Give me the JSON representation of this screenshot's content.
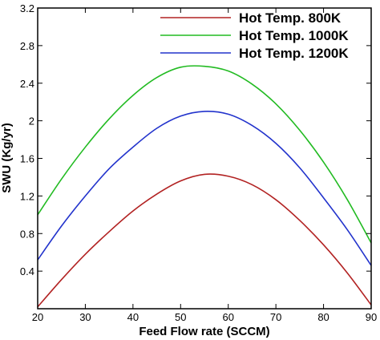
{
  "chart_data": {
    "type": "line",
    "xlabel": "Feed Flow rate (SCCM)",
    "ylabel": "SWU (Kg/yr)",
    "xlim": [
      20,
      90
    ],
    "ylim": [
      0,
      3.2
    ],
    "xticks": [
      20,
      30,
      40,
      50,
      60,
      70,
      80,
      90
    ],
    "yticks": [
      0.4,
      0.8,
      1.2,
      1.6,
      2,
      2.4,
      2.8,
      3.2
    ],
    "legend_position": "top-right",
    "grid": false,
    "x": [
      20,
      25,
      30,
      35,
      40,
      45,
      50,
      55,
      60,
      65,
      70,
      75,
      80,
      85,
      90
    ],
    "series": [
      {
        "name": "Hot Temp. 800K",
        "color": "#b22222",
        "values": [
          0.02,
          0.31,
          0.58,
          0.82,
          1.04,
          1.22,
          1.36,
          1.43,
          1.41,
          1.32,
          1.16,
          0.94,
          0.68,
          0.38,
          0.04
        ]
      },
      {
        "name": "Hot Temp. 1000K",
        "color": "#22bb22",
        "values": [
          1.0,
          1.38,
          1.72,
          2.02,
          2.27,
          2.46,
          2.57,
          2.58,
          2.53,
          2.39,
          2.18,
          1.9,
          1.56,
          1.16,
          0.7
        ]
      },
      {
        "name": "Hot Temp. 1200K",
        "color": "#2233cc",
        "values": [
          0.52,
          0.88,
          1.2,
          1.49,
          1.72,
          1.92,
          2.05,
          2.1,
          2.07,
          1.95,
          1.76,
          1.5,
          1.18,
          0.84,
          0.46
        ]
      }
    ]
  }
}
